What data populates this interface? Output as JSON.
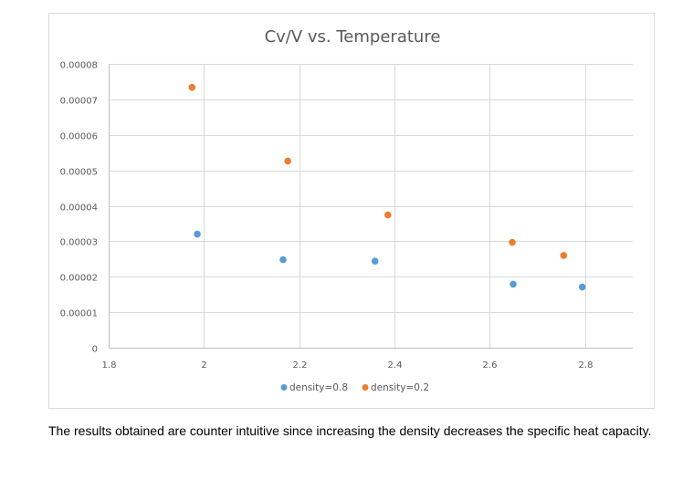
{
  "chart_data": {
    "type": "scatter",
    "title": "Cv/V vs. Temperature",
    "xlabel": "",
    "ylabel": "",
    "xlim": [
      1.8,
      2.9
    ],
    "ylim": [
      0,
      8e-05
    ],
    "x_ticks": [
      1.8,
      2.0,
      2.2,
      2.4,
      2.6,
      2.8
    ],
    "x_tick_labels": [
      "1.8",
      "2",
      "2.2",
      "2.4",
      "2.6",
      "2.8"
    ],
    "y_ticks": [
      0,
      1e-05,
      2e-05,
      3e-05,
      4e-05,
      5e-05,
      6e-05,
      7e-05,
      8e-05
    ],
    "y_tick_labels": [
      "0",
      "0.00001",
      "0.00002",
      "0.00003",
      "0.00004",
      "0.00005",
      "0.00006",
      "0.00007",
      "0.00008"
    ],
    "grid": true,
    "legend_position": "bottom",
    "series": [
      {
        "name": "density=0.8",
        "color": "#5b9bd5",
        "x": [
          1.986,
          2.166,
          2.359,
          2.649,
          2.794
        ],
        "y": [
          3.2e-05,
          2.48e-05,
          2.44e-05,
          1.79e-05,
          1.71e-05
        ]
      },
      {
        "name": "density=0.2",
        "color": "#ed7d31",
        "x": [
          1.975,
          2.176,
          2.386,
          2.647,
          2.755
        ],
        "y": [
          7.34e-05,
          5.26e-05,
          3.74e-05,
          2.97e-05,
          2.6e-05
        ]
      }
    ]
  },
  "caption": "The results obtained are counter intuitive since increasing the density decreases the specific heat capacity."
}
